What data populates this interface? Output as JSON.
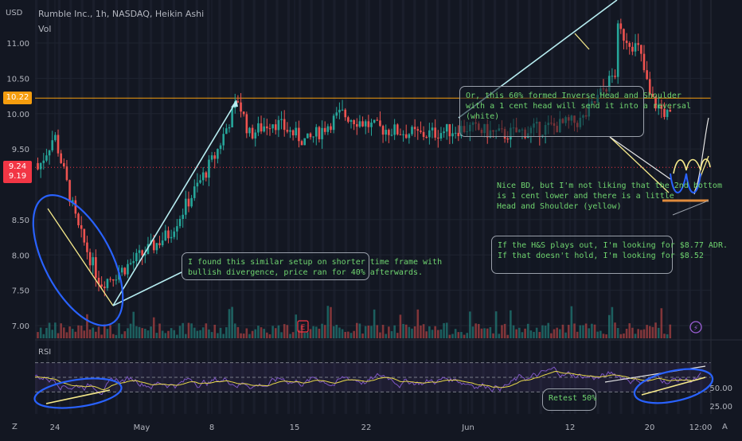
{
  "header": {
    "symbol_line": "Rumble Inc., 1h, NASDAQ, Heikin Ashi",
    "indicator": "Vol",
    "currency": "USD"
  },
  "price_tags": [
    {
      "value": "10.22",
      "color": "#f59d0e"
    },
    {
      "value": "9.24",
      "color": "#f23645"
    },
    {
      "value": "9.19",
      "color": "#f23645"
    }
  ],
  "rsi_label": "RSI",
  "markers": {
    "earnings": "E",
    "dividend": "⚡"
  },
  "corner": {
    "left": "Z",
    "right": "A"
  },
  "annotations": {
    "left_note": "I found this similar setup on shorter time frame with\nbullish divergence, price ran for 40% afterwards.",
    "top_note": "Or, this 60% formed Inverse Head and Shoulder\nwith a 1 cent head will send it into a reversal\n(white)",
    "mid_note": "Nice BD, but I'm not liking that the 2nd bottom\nis 1 cent lower and there is a little\nHead and Shoulder (yellow)",
    "bottom_note": "If the H&S plays out, I'm looking for $8.77 ADR.\nIf that doesn't hold, I'm looking for $8.52",
    "retest": "Retest 50%"
  },
  "chart_data": [
    {
      "type": "candlestick",
      "title": "Rumble Inc., 1h, NASDAQ, Heikin Ashi",
      "ylabel": "USD",
      "ylim": [
        6.9,
        11.4
      ],
      "y_ticks": [
        7.0,
        7.5,
        8.0,
        8.5,
        9.5,
        10.0,
        10.5,
        11.0
      ],
      "x_ticks": [
        "24",
        "May",
        "8",
        "15",
        "22",
        "Jun",
        "12",
        "20",
        "12:00"
      ],
      "levels": [
        {
          "value": 10.22,
          "color": "#f59d0e",
          "style": "solid"
        },
        {
          "value": 9.24,
          "color": "#f23645",
          "style": "dotted"
        }
      ],
      "path_keypoints": [
        {
          "date": "Apr 19",
          "price": 9.3
        },
        {
          "date": "Apr 21",
          "price": 8.7
        },
        {
          "date": "Apr 24",
          "price": 9.7
        },
        {
          "date": "Apr 26",
          "price": 8.4
        },
        {
          "date": "Apr 28",
          "price": 7.6
        },
        {
          "date": "Apr 30",
          "price": 7.8
        },
        {
          "date": "May 4",
          "price": 8.3
        },
        {
          "date": "May 8",
          "price": 9.4
        },
        {
          "date": "May 10",
          "price": 10.2
        },
        {
          "date": "May 11",
          "price": 9.7
        },
        {
          "date": "May 13",
          "price": 9.9
        },
        {
          "date": "May 16",
          "price": 9.6
        },
        {
          "date": "May 19",
          "price": 10.0
        },
        {
          "date": "May 22",
          "price": 9.8
        },
        {
          "date": "May 26",
          "price": 9.7
        },
        {
          "date": "May 30",
          "price": 9.8
        },
        {
          "date": "Jun 2",
          "price": 9.7
        },
        {
          "date": "Jun 6",
          "price": 9.8
        },
        {
          "date": "Jun 9",
          "price": 9.9
        },
        {
          "date": "Jun 12",
          "price": 10.6
        },
        {
          "date": "Jun 12",
          "price": 11.2
        },
        {
          "date": "Jun 14",
          "price": 10.9
        },
        {
          "date": "Jun 15",
          "price": 10.2
        },
        {
          "date": "Jun 17",
          "price": 9.9
        },
        {
          "date": "Jun 18",
          "price": 9.6
        },
        {
          "date": "Jun 20",
          "price": 9.3
        },
        {
          "date": "Jun 21",
          "price": 9.2
        }
      ]
    },
    {
      "type": "line",
      "title": "RSI",
      "ylim": [
        0,
        100
      ],
      "y_ticks": [
        25.0,
        50.0
      ],
      "series": [
        {
          "name": "RSI",
          "color": "#7e57c2"
        },
        {
          "color": "#e8d94a"
        }
      ]
    }
  ]
}
